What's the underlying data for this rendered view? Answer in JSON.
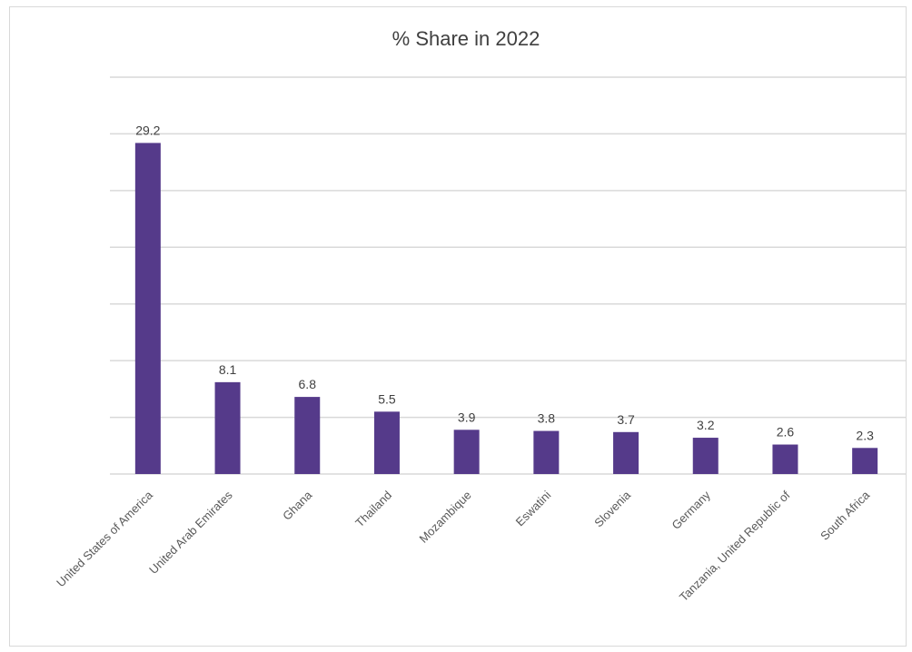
{
  "chart_data": {
    "type": "bar",
    "title": "% Share in 2022",
    "xlabel": "",
    "ylabel": "",
    "categories": [
      "United States of America",
      "United Arab Emirates",
      "Ghana",
      "Thailand",
      "Mozambique",
      "Eswatini",
      "Slovenia",
      "Germany",
      "Tanzania, United Republic of",
      "South Africa"
    ],
    "values": [
      29.2,
      8.1,
      6.8,
      5.5,
      3.9,
      3.8,
      3.7,
      3.2,
      2.6,
      2.3
    ],
    "ylim": [
      0,
      35
    ],
    "gridlines": [
      0,
      5,
      10,
      15,
      20,
      25,
      30,
      35
    ],
    "grid": true,
    "legend": "none",
    "bar_color": "#553a8a"
  }
}
